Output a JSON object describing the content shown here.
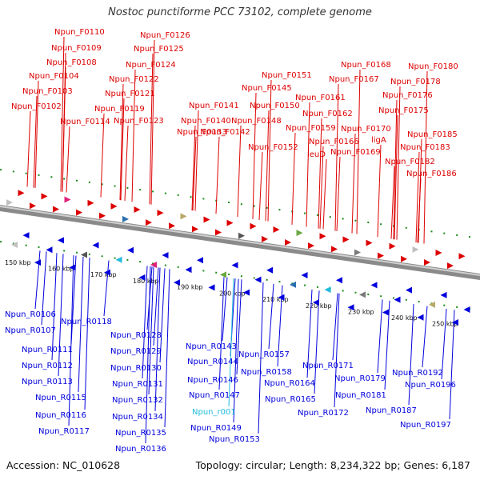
{
  "title": "Nostoc punctiforme PCC 73102, complete genome",
  "footer": {
    "accession": "Accession: NC_010628",
    "topology": "Topology: circular; Length: 8,234,322 bp; Genes: 6,187"
  },
  "colors": {
    "forward": "#dd0000",
    "reverse": "#0000dd",
    "rna": "#22bbdd",
    "backbone": "#8a8a8a",
    "ticks": "#1a8a1a"
  },
  "scale_labels": [
    "150 kbp",
    "160 kbp",
    "170 kbp",
    "180 kbp",
    "190 kbp",
    "200 kbp",
    "210 kbp",
    "220 kbp",
    "230 kbp",
    "240 kbp",
    "250 kbp"
  ],
  "forward_genes": [
    "Npun_F0110",
    "Npun_F0109",
    "Npun_F0108",
    "Npun_F0104",
    "Npun_F0103",
    "Npun_F0102",
    "Npun_F0114",
    "Npun_F0126",
    "Npun_F0125",
    "Npun_F0124",
    "Npun_F0122",
    "Npun_F0121",
    "Npun_F0119",
    "Npun_F0123",
    "Npun_F0133",
    "Npun_F0141",
    "Npun_F0140",
    "Npun_F0142",
    "Npun_F0151",
    "Npun_F0145",
    "Npun_F0150",
    "Npun_F0148",
    "Npun_F0152",
    "Npun_F0168",
    "Npun_F0167",
    "Npun_F0161",
    "Npun_F0162",
    "Npun_F0159",
    "Npun_F0166",
    "leuD",
    "Npun_F0169",
    "Npun_F0170",
    "Npun_F0180",
    "Npun_F0178",
    "Npun_F0176",
    "Npun_F0175",
    "ligA",
    "Npun_F0185",
    "Npun_F0183",
    "Npun_F0182",
    "Npun_F0186"
  ],
  "reverse_genes": [
    "Npun_R0106",
    "Npun_R0107",
    "Npun_R0118",
    "Npun_R0111",
    "Npun_R0112",
    "Npun_R0113",
    "Npun_R0115",
    "Npun_R0116",
    "Npun_R0117",
    "Npun_R0128",
    "Npun_R0129",
    "Npun_R0130",
    "Npun_R0131",
    "Npun_R0132",
    "Npun_R0134",
    "Npun_R0135",
    "Npun_R0136",
    "Npun_R0143",
    "Npun_R0144",
    "Npun_R0146",
    "Npun_R0147",
    "Npun_r001",
    "Npun_R0149",
    "Npun_R0153",
    "Npun_R0157",
    "Npun_R0158",
    "Npun_R0164",
    "Npun_R0165",
    "Npun_R0171",
    "Npun_R0172",
    "Npun_R0179",
    "Npun_R0181",
    "Npun_R0192",
    "Npun_R0196",
    "Npun_R0187",
    "Npun_R0197"
  ],
  "rna_genes": [
    "Npun_r001"
  ]
}
